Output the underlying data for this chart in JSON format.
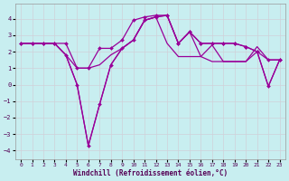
{
  "background_color": "#c8eef0",
  "grid_color": "#c8c8d8",
  "line_color": "#990099",
  "x_ticks": [
    0,
    1,
    2,
    3,
    4,
    5,
    6,
    7,
    8,
    9,
    10,
    11,
    12,
    13,
    14,
    15,
    16,
    17,
    18,
    19,
    20,
    21,
    22,
    23
  ],
  "y_ticks": [
    -4,
    -3,
    -2,
    -1,
    0,
    1,
    2,
    3,
    4
  ],
  "xlabel": "Windchill (Refroidissement éolien,°C)",
  "line1_x": [
    0,
    1,
    2,
    3,
    4,
    5,
    6,
    7,
    8,
    9,
    10,
    11,
    12,
    13,
    14,
    15,
    16,
    17,
    18,
    19,
    20,
    21,
    22,
    23
  ],
  "line1_y": [
    2.5,
    2.5,
    2.5,
    2.5,
    2.5,
    1.0,
    1.0,
    2.2,
    2.2,
    2.7,
    3.9,
    4.1,
    4.2,
    4.2,
    2.5,
    3.2,
    2.5,
    2.5,
    2.5,
    2.5,
    2.3,
    2.0,
    1.5,
    1.5
  ],
  "line2_x": [
    0,
    1,
    2,
    3,
    4,
    5,
    6,
    7,
    8,
    9,
    10,
    11,
    12,
    13,
    14,
    15,
    16,
    17,
    18,
    19,
    20,
    21,
    22,
    23
  ],
  "line2_y": [
    2.5,
    2.5,
    2.5,
    2.5,
    1.8,
    0.0,
    -3.7,
    -1.2,
    1.2,
    2.2,
    2.7,
    3.9,
    4.1,
    4.2,
    2.5,
    3.2,
    2.5,
    2.5,
    2.5,
    2.5,
    2.3,
    2.0,
    -0.1,
    1.5
  ],
  "line3_x": [
    0,
    1,
    2,
    3,
    4,
    5,
    6,
    7,
    8,
    9,
    10,
    11,
    12,
    13,
    14,
    15,
    16,
    17,
    18,
    19,
    20,
    21,
    22,
    23
  ],
  "line3_y": [
    2.5,
    2.5,
    2.5,
    2.5,
    1.8,
    0.0,
    -3.7,
    -1.2,
    1.2,
    2.2,
    2.7,
    3.9,
    4.1,
    4.2,
    2.5,
    3.2,
    1.7,
    1.4,
    1.4,
    1.4,
    1.4,
    2.0,
    -0.1,
    1.5
  ],
  "line4_x": [
    2,
    3,
    4,
    5,
    6,
    7,
    8,
    9,
    10,
    11,
    12,
    13,
    14,
    15,
    16,
    17,
    18,
    19,
    20,
    21,
    22,
    23
  ],
  "line4_y": [
    2.5,
    2.5,
    1.8,
    1.0,
    1.0,
    1.2,
    1.8,
    2.2,
    2.7,
    3.9,
    4.1,
    2.5,
    1.7,
    1.7,
    1.7,
    2.4,
    1.4,
    1.4,
    1.4,
    2.3,
    1.5,
    1.5
  ],
  "xlim": [
    -0.5,
    23.5
  ],
  "ylim": [
    -4.5,
    4.9
  ],
  "figsize": [
    3.2,
    2.0
  ],
  "dpi": 100
}
